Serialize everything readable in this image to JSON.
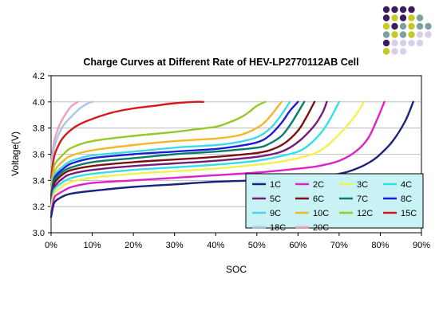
{
  "chart_data": {
    "type": "line",
    "title": "Charge Curves at Different Rate of HEV-LP2770112AB Cell",
    "xlabel": "SOC",
    "ylabel": "Voltage(V)",
    "xlim": [
      0,
      0.9
    ],
    "ylim": [
      3.0,
      4.2
    ],
    "xticks": [
      0,
      0.1,
      0.2,
      0.3,
      0.4,
      0.5,
      0.6,
      0.7,
      0.8,
      0.9
    ],
    "xtick_labels": [
      "0%",
      "10%",
      "20%",
      "30%",
      "40%",
      "50%",
      "60%",
      "70%",
      "80%",
      "90%"
    ],
    "yticks": [
      3.0,
      3.2,
      3.4,
      3.6,
      3.8,
      4.0,
      4.2
    ],
    "ytick_labels": [
      "3.0",
      "3.2",
      "3.4",
      "3.6",
      "3.8",
      "4.0",
      "4.2"
    ],
    "grid": "horizontal",
    "legend_position": "lower-right",
    "series": [
      {
        "name": "1C",
        "color": "#1a237e",
        "x": [
          0,
          0.005,
          0.01,
          0.03,
          0.05,
          0.1,
          0.2,
          0.3,
          0.4,
          0.5,
          0.6,
          0.7,
          0.75,
          0.78,
          0.8,
          0.83,
          0.86,
          0.88
        ],
        "y": [
          3.12,
          3.2,
          3.24,
          3.28,
          3.3,
          3.32,
          3.35,
          3.37,
          3.39,
          3.4,
          3.41,
          3.45,
          3.5,
          3.55,
          3.6,
          3.7,
          3.85,
          4.0
        ]
      },
      {
        "name": "2C",
        "color": "#e020c8",
        "x": [
          0,
          0.005,
          0.01,
          0.03,
          0.05,
          0.1,
          0.2,
          0.3,
          0.4,
          0.5,
          0.6,
          0.65,
          0.7,
          0.74,
          0.77,
          0.79,
          0.81
        ],
        "y": [
          3.15,
          3.23,
          3.28,
          3.32,
          3.35,
          3.38,
          3.4,
          3.42,
          3.44,
          3.46,
          3.49,
          3.51,
          3.55,
          3.62,
          3.72,
          3.85,
          4.0
        ]
      },
      {
        "name": "3C",
        "color": "#f2f24a",
        "x": [
          0,
          0.005,
          0.01,
          0.03,
          0.05,
          0.1,
          0.2,
          0.3,
          0.4,
          0.5,
          0.55,
          0.6,
          0.65,
          0.69,
          0.72,
          0.745,
          0.76
        ],
        "y": [
          3.18,
          3.27,
          3.31,
          3.36,
          3.39,
          3.42,
          3.45,
          3.47,
          3.49,
          3.52,
          3.54,
          3.57,
          3.62,
          3.72,
          3.82,
          3.92,
          4.0
        ]
      },
      {
        "name": "4C",
        "color": "#30e0e8",
        "x": [
          0,
          0.005,
          0.01,
          0.03,
          0.05,
          0.1,
          0.2,
          0.3,
          0.4,
          0.5,
          0.55,
          0.6,
          0.63,
          0.66,
          0.68,
          0.7
        ],
        "y": [
          3.2,
          3.3,
          3.34,
          3.39,
          3.42,
          3.45,
          3.48,
          3.5,
          3.52,
          3.55,
          3.58,
          3.62,
          3.68,
          3.78,
          3.88,
          4.0
        ]
      },
      {
        "name": "5C",
        "color": "#7a1a78",
        "x": [
          0,
          0.005,
          0.01,
          0.03,
          0.05,
          0.1,
          0.2,
          0.3,
          0.4,
          0.5,
          0.55,
          0.58,
          0.61,
          0.64,
          0.66,
          0.67
        ],
        "y": [
          3.22,
          3.32,
          3.36,
          3.42,
          3.45,
          3.48,
          3.51,
          3.53,
          3.55,
          3.58,
          3.61,
          3.65,
          3.72,
          3.82,
          3.92,
          4.0
        ]
      },
      {
        "name": "6C",
        "color": "#7a1010",
        "x": [
          0,
          0.005,
          0.01,
          0.03,
          0.05,
          0.1,
          0.2,
          0.3,
          0.4,
          0.5,
          0.54,
          0.57,
          0.6,
          0.62,
          0.64
        ],
        "y": [
          3.24,
          3.34,
          3.39,
          3.45,
          3.48,
          3.51,
          3.54,
          3.56,
          3.58,
          3.61,
          3.64,
          3.69,
          3.78,
          3.88,
          4.0
        ]
      },
      {
        "name": "7C",
        "color": "#0a7a6a",
        "x": [
          0,
          0.005,
          0.01,
          0.03,
          0.05,
          0.1,
          0.2,
          0.3,
          0.4,
          0.5,
          0.53,
          0.56,
          0.58,
          0.6,
          0.615
        ],
        "y": [
          3.26,
          3.36,
          3.41,
          3.47,
          3.5,
          3.54,
          3.57,
          3.6,
          3.62,
          3.65,
          3.68,
          3.74,
          3.82,
          3.92,
          4.0
        ]
      },
      {
        "name": "8C",
        "color": "#1c1cd8",
        "x": [
          0,
          0.005,
          0.01,
          0.03,
          0.05,
          0.1,
          0.2,
          0.3,
          0.4,
          0.45,
          0.5,
          0.53,
          0.56,
          0.58,
          0.6
        ],
        "y": [
          3.28,
          3.38,
          3.43,
          3.49,
          3.53,
          3.57,
          3.6,
          3.62,
          3.64,
          3.66,
          3.69,
          3.74,
          3.84,
          3.93,
          4.0
        ]
      },
      {
        "name": "9C",
        "color": "#40d8e8",
        "x": [
          0,
          0.005,
          0.01,
          0.03,
          0.05,
          0.1,
          0.2,
          0.3,
          0.4,
          0.45,
          0.5,
          0.53,
          0.55,
          0.57,
          0.58
        ],
        "y": [
          3.3,
          3.4,
          3.45,
          3.51,
          3.55,
          3.59,
          3.62,
          3.65,
          3.67,
          3.69,
          3.73,
          3.79,
          3.86,
          3.95,
          4.0
        ]
      },
      {
        "name": "10C",
        "color": "#f0b82a",
        "x": [
          0,
          0.005,
          0.01,
          0.03,
          0.05,
          0.1,
          0.2,
          0.3,
          0.4,
          0.45,
          0.48,
          0.51,
          0.53,
          0.55,
          0.56
        ],
        "y": [
          3.32,
          3.42,
          3.48,
          3.55,
          3.59,
          3.63,
          3.67,
          3.7,
          3.72,
          3.74,
          3.77,
          3.82,
          3.88,
          3.96,
          4.0
        ]
      },
      {
        "name": "12C",
        "color": "#98c828",
        "x": [
          0,
          0.005,
          0.01,
          0.03,
          0.05,
          0.1,
          0.2,
          0.3,
          0.35,
          0.4,
          0.43,
          0.46,
          0.48,
          0.5,
          0.52
        ],
        "y": [
          3.36,
          3.47,
          3.53,
          3.6,
          3.65,
          3.7,
          3.74,
          3.77,
          3.79,
          3.81,
          3.84,
          3.88,
          3.92,
          3.97,
          4.0
        ]
      },
      {
        "name": "15C",
        "color": "#d81818",
        "x": [
          0,
          0.005,
          0.01,
          0.02,
          0.03,
          0.05,
          0.07,
          0.1,
          0.15,
          0.2,
          0.25,
          0.3,
          0.35,
          0.37
        ],
        "y": [
          3.42,
          3.54,
          3.61,
          3.68,
          3.73,
          3.79,
          3.83,
          3.87,
          3.92,
          3.95,
          3.97,
          3.99,
          4.0,
          4.0
        ]
      },
      {
        "name": "18C",
        "color": "#a8c8e8",
        "x": [
          0,
          0.003,
          0.006,
          0.01,
          0.02,
          0.03,
          0.05,
          0.07,
          0.09,
          0.1
        ],
        "y": [
          3.46,
          3.55,
          3.62,
          3.68,
          3.76,
          3.82,
          3.89,
          3.95,
          3.99,
          4.0
        ]
      },
      {
        "name": "20C",
        "color": "#f0a0b8",
        "x": [
          0,
          0.003,
          0.006,
          0.01,
          0.02,
          0.03,
          0.04,
          0.05,
          0.06,
          0.065
        ],
        "y": [
          3.5,
          3.6,
          3.67,
          3.73,
          3.82,
          3.88,
          3.93,
          3.97,
          3.99,
          4.0
        ]
      }
    ]
  },
  "decoration": {
    "dot_colors": [
      [
        "#3b1d5e",
        "#3b1d5e",
        "#3b1d5e",
        "#3b1d5e"
      ],
      [
        "#3b1d5e",
        "#c8c820",
        "#3b1d5e",
        "#c8c820",
        "#7aa0a0"
      ],
      [
        "#c8c820",
        "#3b1d5e",
        "#7aa0a0",
        "#c8c820",
        "#7aa0a0",
        "#7aa0a0"
      ],
      [
        "#7aa0a0",
        "#c8c820",
        "#7aa0a0",
        "#c8c820",
        "#d8d0e8",
        "#d8d0e8"
      ],
      [
        "#3b1d5e",
        "#d8d0e8",
        "#d8d0e8",
        "#d8d0e8",
        "#d8d0e8"
      ],
      [
        "#c8c820",
        "#d8d0e8",
        "#d8d0e8"
      ]
    ]
  }
}
